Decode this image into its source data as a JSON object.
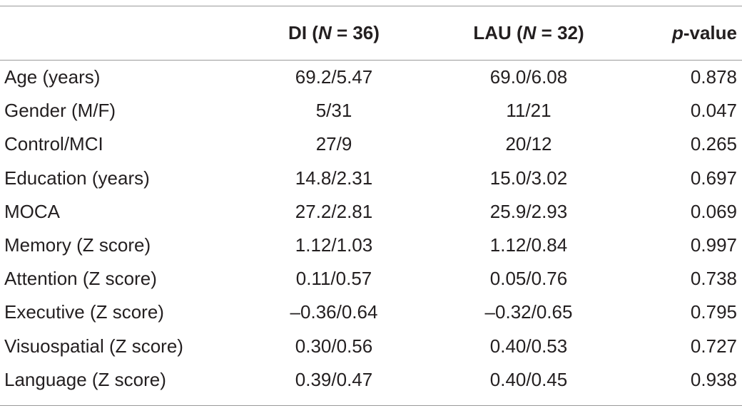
{
  "table": {
    "header": [
      [],
      [
        {
          "text": "DI (",
          "italic": false
        },
        {
          "text": "N",
          "italic": true
        },
        {
          "text": " = 36)",
          "italic": false
        }
      ],
      [
        {
          "text": "LAU (",
          "italic": false
        },
        {
          "text": "N",
          "italic": true
        },
        {
          "text": " = 32)",
          "italic": false
        }
      ],
      [
        {
          "text": "p",
          "italic": true
        },
        {
          "text": "-value",
          "italic": false
        }
      ]
    ],
    "rows": [
      [
        "Age (years)",
        "69.2/5.47",
        "69.0/6.08",
        "0.878"
      ],
      [
        "Gender (M/F)",
        "5/31",
        "11/21",
        "0.047"
      ],
      [
        "Control/MCI",
        "27/9",
        "20/12",
        "0.265"
      ],
      [
        "Education (years)",
        "14.8/2.31",
        "15.0/3.02",
        "0.697"
      ],
      [
        "MOCA",
        "27.2/2.81",
        "25.9/2.93",
        "0.069"
      ],
      [
        "Memory (Z score)",
        "1.12/1.03",
        "1.12/0.84",
        "0.997"
      ],
      [
        "Attention (Z score)",
        "0.11/0.57",
        "0.05/0.76",
        "0.738"
      ],
      [
        "Executive (Z score)",
        "–0.36/0.64",
        "–0.32/0.65",
        "0.795"
      ],
      [
        "Visuospatial (Z score)",
        "0.30/0.56",
        "0.40/0.53",
        "0.727"
      ],
      [
        "Language (Z score)",
        "0.39/0.47",
        "0.40/0.45",
        "0.938"
      ]
    ]
  }
}
